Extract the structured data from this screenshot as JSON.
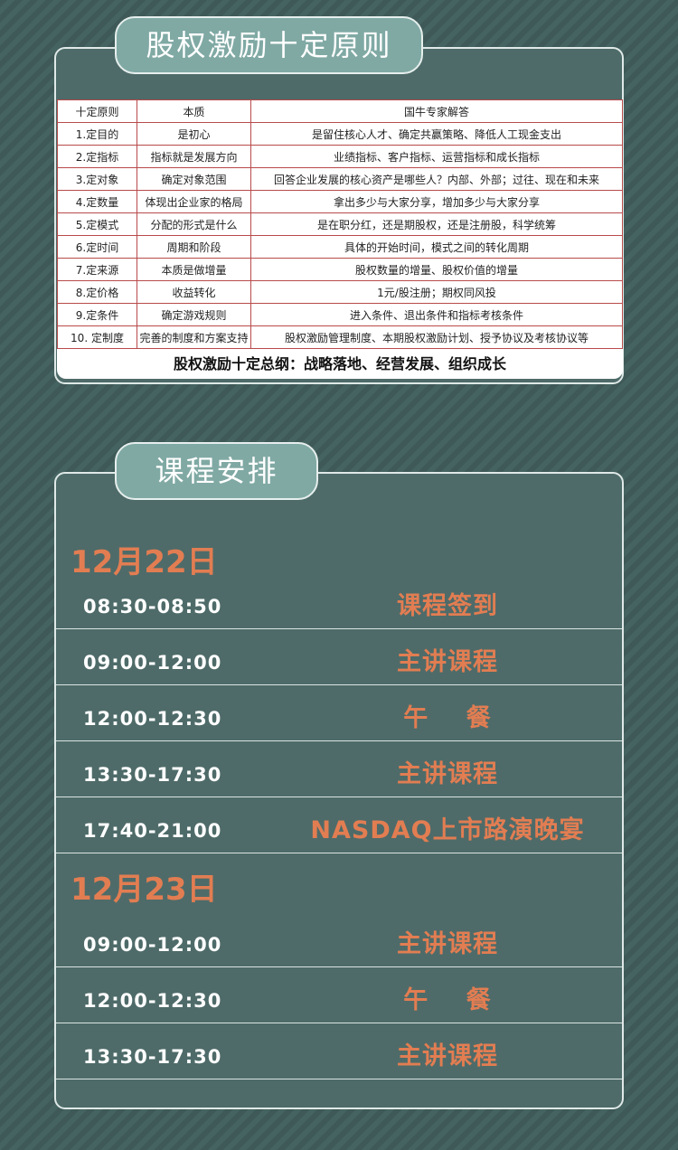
{
  "principles": {
    "title": "股权激励十定原则",
    "headers": [
      "十定原则",
      "本质",
      "国牛专家解答"
    ],
    "rows": [
      [
        "1.定目的",
        "是初心",
        "是留住核心人才、确定共赢策略、降低人工现金支出"
      ],
      [
        "2.定指标",
        "指标就是发展方向",
        "业绩指标、客户指标、运营指标和成长指标"
      ],
      [
        "3.定对象",
        "确定对象范围",
        "回答企业发展的核心资产是哪些人？内部、外部；过往、现在和未来"
      ],
      [
        "4.定数量",
        "体现出企业家的格局",
        "拿出多少与大家分享，增加多少与大家分享"
      ],
      [
        "5.定模式",
        "分配的形式是什么",
        "是在职分红，还是期股权，还是注册股，科学统筹"
      ],
      [
        "6.定时间",
        "周期和阶段",
        "具体的开始时间，模式之间的转化周期"
      ],
      [
        "7.定来源",
        "本质是做增量",
        "股权数量的增量、股权价值的增量"
      ],
      [
        "8.定价格",
        "收益转化",
        "1元/股注册；期权同风投"
      ],
      [
        "9.定条件",
        "确定游戏规则",
        "进入条件、退出条件和指标考核条件"
      ],
      [
        "10. 定制度",
        "完善的制度和方案支持",
        "股权激励管理制度、本期股权激励计划、授予协议及考核协议等"
      ]
    ],
    "summary": "股权激励十定总纲：战略落地、经营发展、组织成长"
  },
  "schedule": {
    "title": "课程安排",
    "days": [
      {
        "date": "12月22日",
        "items": [
          {
            "time": "08:30-08:50",
            "activity": "课程签到"
          },
          {
            "time": "09:00-12:00",
            "activity": "主讲课程"
          },
          {
            "time": "12:00-12:30",
            "activity": "午    餐"
          },
          {
            "time": "13:30-17:30",
            "activity": "主讲课程"
          },
          {
            "time": "17:40-21:00",
            "activity": "NASDAQ上市路演晚宴"
          }
        ]
      },
      {
        "date": "12月23日",
        "items": [
          {
            "time": "09:00-12:00",
            "activity": "主讲课程"
          },
          {
            "time": "12:00-12:30",
            "activity": "午    餐"
          },
          {
            "time": "13:30-17:30",
            "activity": "主讲课程"
          }
        ]
      }
    ]
  },
  "colors": {
    "accent": "#e27d52",
    "panel": "#4e6b69",
    "tab": "#80a9a4"
  }
}
